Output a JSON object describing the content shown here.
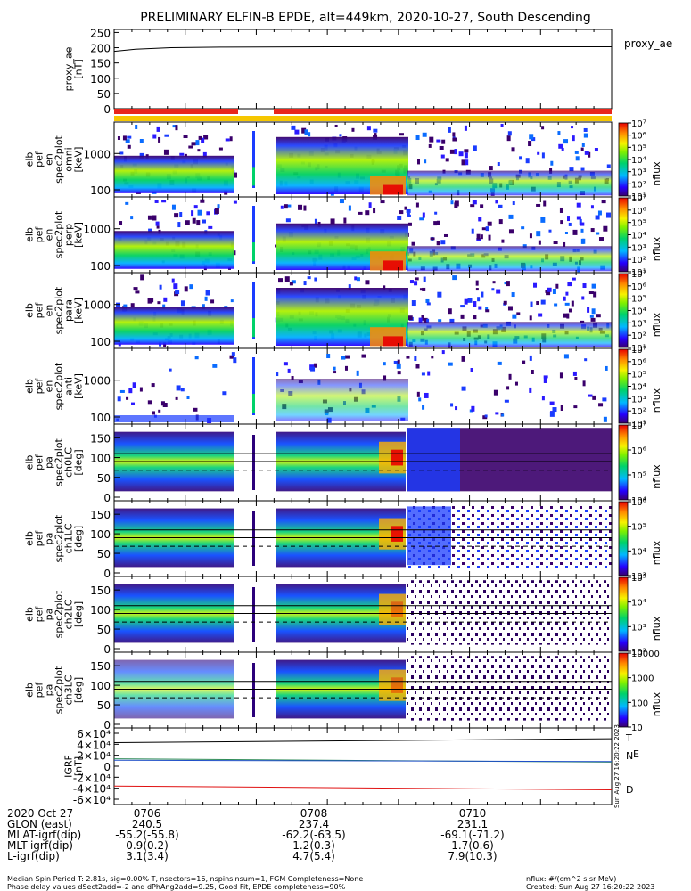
{
  "title": "PRELIMINARY ELFIN-B EPDE, alt=449km, 2020-10-27, South Descending",
  "colors": {
    "proxy_ae_line": "#000000",
    "bar_red": "#e8261c",
    "bar_yellow": "#f6c700",
    "igrf_T": "#000000",
    "igrf_N": "#2e8b57",
    "igrf_E": "#1f4fc8",
    "igrf_D": "#e01010"
  },
  "chart_data": [
    {
      "type": "line",
      "name": "proxy_ae",
      "ylabel": [
        "proxy_ae",
        "[nT]"
      ],
      "legend": "proxy_ae",
      "yticks": [
        "250",
        "200",
        "150",
        "100",
        "50",
        "0"
      ],
      "ylim": [
        0,
        260
      ],
      "x_minutes": [
        0,
        0.3,
        0.8,
        1.5,
        3,
        5,
        7
      ],
      "y": [
        188,
        195,
        200,
        202,
        203,
        203,
        203
      ]
    },
    {
      "type": "heatmap",
      "name": "spec2plot omni",
      "ylabel": [
        "elb",
        "pef",
        "en",
        "spec2plot",
        "omni",
        "[keV]"
      ],
      "yticks": [
        "1000",
        "100"
      ],
      "colorbar_label": "nflux",
      "colorbar_ticks": [
        "10⁷",
        "10⁶",
        "10⁵",
        "10⁴",
        "10³",
        "10²",
        "10¹"
      ]
    },
    {
      "type": "heatmap",
      "name": "spec2plot perp",
      "ylabel": [
        "elb",
        "pef",
        "en",
        "spec2plot",
        "perp",
        "[keV]"
      ],
      "yticks": [
        "1000",
        "100"
      ],
      "colorbar_label": "nflux",
      "colorbar_ticks": [
        "10⁷",
        "10⁶",
        "10⁵",
        "10⁴",
        "10³",
        "10²",
        "10¹"
      ]
    },
    {
      "type": "heatmap",
      "name": "spec2plot para",
      "ylabel": [
        "elb",
        "pef",
        "en",
        "spec2plot",
        "para",
        "[keV]"
      ],
      "yticks": [
        "1000",
        "100"
      ],
      "colorbar_label": "nflux",
      "colorbar_ticks": [
        "10⁷",
        "10⁶",
        "10⁵",
        "10⁴",
        "10³",
        "10²",
        "10¹"
      ]
    },
    {
      "type": "heatmap",
      "name": "spec2plot anti",
      "ylabel": [
        "elb",
        "pef",
        "en",
        "spec2plot",
        "anti",
        "[keV]"
      ],
      "yticks": [
        "1000",
        "100"
      ],
      "colorbar_label": "nflux",
      "colorbar_ticks": [
        "10⁷",
        "10⁶",
        "10⁵",
        "10⁴",
        "10³",
        "10²",
        "10¹"
      ]
    },
    {
      "type": "heatmap",
      "name": "spec2plot ch0LC",
      "ylabel": [
        "elb",
        "pef",
        "pa",
        "spec2plot",
        "ch0LC",
        "[deg]"
      ],
      "yticks": [
        "150",
        "100",
        "50",
        "0"
      ],
      "colorbar_label": "nflux",
      "colorbar_ticks": [
        "10⁷",
        "10⁶",
        "10⁵",
        "10⁴"
      ]
    },
    {
      "type": "heatmap",
      "name": "spec2plot ch1LC",
      "ylabel": [
        "elb",
        "pef",
        "pa",
        "spec2plot",
        "ch1LC",
        "[deg]"
      ],
      "yticks": [
        "150",
        "100",
        "50",
        "0"
      ],
      "colorbar_label": "nflux",
      "colorbar_ticks": [
        "10⁶",
        "10⁵",
        "10⁴",
        "10³"
      ]
    },
    {
      "type": "heatmap",
      "name": "spec2plot ch2LC",
      "ylabel": [
        "elb",
        "pef",
        "pa",
        "spec2plot",
        "ch2LC",
        "[deg]"
      ],
      "yticks": [
        "150",
        "100",
        "50",
        "0"
      ],
      "colorbar_label": "nflux",
      "colorbar_ticks": [
        "10⁵",
        "10⁴",
        "10³",
        "10²"
      ]
    },
    {
      "type": "heatmap",
      "name": "spec2plot ch3LC",
      "ylabel": [
        "elb",
        "pef",
        "pa",
        "spec2plot",
        "ch3LC",
        "[deg]"
      ],
      "yticks": [
        "150",
        "100",
        "50",
        "0"
      ],
      "colorbar_label": "nflux",
      "colorbar_ticks": [
        "10000",
        "1000",
        "100",
        "10"
      ]
    },
    {
      "type": "line",
      "name": "IGRF",
      "ylabel": [
        "IGRF",
        "[nT]"
      ],
      "yticks": [
        "6×10⁴",
        "4×10⁴",
        "2×10⁴",
        "0",
        "-2×10⁴",
        "-4×10⁴",
        "-6×10⁴"
      ],
      "ylim": [
        -60000,
        60000
      ],
      "series": [
        {
          "name": "T",
          "x_minutes": [
            0,
            7
          ],
          "y": [
            43000,
            50000
          ]
        },
        {
          "name": "N",
          "x_minutes": [
            0,
            7
          ],
          "y": [
            13500,
            7500
          ]
        },
        {
          "name": "E",
          "x_minutes": [
            0,
            7
          ],
          "y": [
            11000,
            8500
          ]
        },
        {
          "name": "D",
          "x_minutes": [
            0,
            7
          ],
          "y": [
            -36000,
            -43000
          ]
        }
      ]
    }
  ],
  "vertical_stamp": "Sun Aug 27 16:20:22 2023",
  "bottom_table": {
    "date_label": "2020 Oct 27",
    "times": [
      "0706",
      "0708",
      "0710"
    ],
    "rows": [
      {
        "label": "GLON (east)",
        "values": [
          "240.5",
          "237.4",
          "231.1"
        ]
      },
      {
        "label": "MLAT-igrf(dip)",
        "values": [
          "-55.2(-55.8)",
          "-62.2(-63.5)",
          "-69.1(-71.2)"
        ]
      },
      {
        "label": "MLT-igrf(dip)",
        "values": [
          "0.9(0.2)",
          "1.2(0.3)",
          "1.7(0.6)"
        ]
      },
      {
        "label": "L-igrf(dip)",
        "values": [
          "3.1(3.4)",
          "4.7(5.4)",
          "7.9(10.3)"
        ]
      }
    ]
  },
  "footer": {
    "line1_left": "Median Spin Period T: 2.81s, sig=0.00% T, nsectors=16, nspinsinsum=1, FGM Completeness=None",
    "line2_left": "Phase delay values dSect2add=-2 and dPhAng2add=9.25, Good Fit, EPDE completeness=90%",
    "line1_right": "nflux: #/(cm^2 s sr MeV)",
    "line2_right": "Created: Sun Aug 27 16:20:22 2023"
  }
}
